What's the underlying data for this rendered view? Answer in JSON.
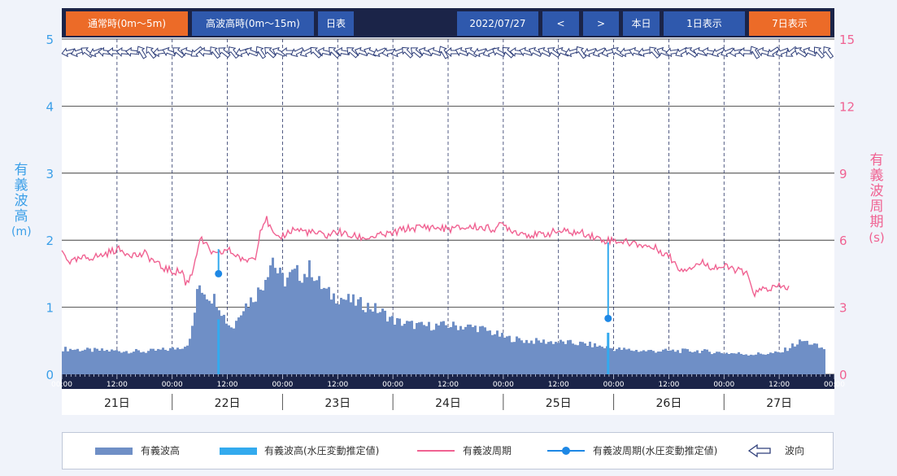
{
  "toolbar": {
    "normal_label": "通常時(0m〜5m)",
    "high_label": "高波高時(0m〜15m)",
    "daily_table_label": "日表",
    "date_value": "2022/07/27",
    "prev_label": "<",
    "next_label": ">",
    "today_label": "本日",
    "one_day_label": "1日表示",
    "seven_day_label": "7日表示"
  },
  "axes": {
    "left_label": [
      "有",
      "義",
      "波",
      "高",
      "(m)"
    ],
    "right_label": [
      "有",
      "義",
      "波",
      "周",
      "期",
      "(s)"
    ],
    "left_ticks": [
      "5",
      "4",
      "3",
      "2",
      "1",
      "0"
    ],
    "right_ticks": [
      "15",
      "12",
      "9",
      "6",
      "3",
      "0"
    ],
    "time_labels": [
      "00:00",
      "12:00",
      "00:00",
      "12:00",
      "00:00",
      "12:00",
      "00:00",
      "12:00",
      "00:00",
      "12:00",
      "00:00",
      "12:00",
      "00:00",
      "12:00",
      "00:00"
    ],
    "day_labels": [
      "21日",
      "22日",
      "23日",
      "24日",
      "25日",
      "26日",
      "27日"
    ]
  },
  "legend": {
    "wave_height": "有義波高",
    "wave_height_pressure": "有義波高(水圧変動推定値)",
    "wave_period": "有義波周期",
    "wave_period_pressure": "有義波周期(水圧変動推定値)",
    "wave_direction": "波向"
  },
  "colors": {
    "height_bar": "#6f8fc6",
    "height_pressure": "#33aaee",
    "period_line": "#f06292",
    "left_axis": "#3b9fe8",
    "right_axis": "#f06292",
    "orange_button": "#ec6b28",
    "blue_button": "#2f59ad",
    "toolbar_bg": "#1b2448"
  },
  "chart_data": {
    "type": "bar+line",
    "x_unit": "days since 2022-07-21 00:00",
    "x_range": [
      0,
      7
    ],
    "y_left_range": [
      0,
      5
    ],
    "y_right_range": [
      0,
      15
    ],
    "y_left_label": "有義波高(m)",
    "y_right_label": "有義波周期(s)",
    "series": [
      {
        "name": "有義波高",
        "kind": "bar",
        "axis": "left",
        "points": [
          [
            0,
            0.38
          ],
          [
            0.25,
            0.36
          ],
          [
            0.5,
            0.35
          ],
          [
            0.75,
            0.34
          ],
          [
            1.0,
            0.38
          ],
          [
            1.1,
            0.42
          ],
          [
            1.15,
            0.5
          ],
          [
            1.2,
            1.0
          ],
          [
            1.23,
            1.35
          ],
          [
            1.3,
            1.2
          ],
          [
            1.4,
            1.1
          ],
          [
            1.45,
            0.9
          ],
          [
            1.48,
            0.8
          ],
          [
            1.5,
            0.75
          ],
          [
            1.55,
            0.7
          ],
          [
            1.6,
            0.95
          ],
          [
            1.7,
            1.1
          ],
          [
            1.75,
            1.2
          ],
          [
            1.8,
            1.3
          ],
          [
            1.85,
            1.55
          ],
          [
            1.9,
            1.75
          ],
          [
            1.95,
            1.5
          ],
          [
            2.0,
            1.4
          ],
          [
            2.1,
            1.5
          ],
          [
            2.2,
            1.5
          ],
          [
            2.25,
            1.6
          ],
          [
            2.3,
            1.4
          ],
          [
            2.4,
            1.2
          ],
          [
            2.5,
            1.15
          ],
          [
            2.6,
            1.1
          ],
          [
            2.7,
            1.05
          ],
          [
            2.8,
            1.0
          ],
          [
            2.9,
            0.92
          ],
          [
            3.0,
            0.8
          ],
          [
            3.1,
            0.76
          ],
          [
            3.25,
            0.72
          ],
          [
            3.5,
            0.73
          ],
          [
            3.75,
            0.7
          ],
          [
            3.9,
            0.62
          ],
          [
            4.0,
            0.55
          ],
          [
            4.2,
            0.5
          ],
          [
            4.5,
            0.48
          ],
          [
            4.75,
            0.45
          ],
          [
            5.0,
            0.38
          ],
          [
            5.25,
            0.35
          ],
          [
            5.5,
            0.35
          ],
          [
            5.75,
            0.35
          ],
          [
            6.0,
            0.32
          ],
          [
            6.25,
            0.3
          ],
          [
            6.5,
            0.32
          ],
          [
            6.6,
            0.42
          ],
          [
            6.7,
            0.5
          ],
          [
            6.8,
            0.45
          ],
          [
            6.85,
            0.4
          ],
          [
            6.9,
            0.38
          ]
        ]
      },
      {
        "name": "有義波高(水圧変動推定値)",
        "kind": "spike",
        "axis": "left",
        "points": [
          [
            1.42,
            0.82
          ],
          [
            4.95,
            0.62
          ]
        ]
      },
      {
        "name": "有義波周期",
        "kind": "line",
        "axis": "right",
        "points": [
          [
            0,
            5.5
          ],
          [
            0.08,
            5.0
          ],
          [
            0.2,
            5.2
          ],
          [
            0.35,
            5.3
          ],
          [
            0.45,
            5.5
          ],
          [
            0.5,
            5.6
          ],
          [
            0.55,
            5.5
          ],
          [
            0.7,
            5.3
          ],
          [
            0.75,
            5.4
          ],
          [
            0.8,
            5.2
          ],
          [
            0.9,
            4.8
          ],
          [
            1.0,
            4.6
          ],
          [
            1.1,
            4.6
          ],
          [
            1.12,
            4.0
          ],
          [
            1.18,
            4.5
          ],
          [
            1.25,
            6.1
          ],
          [
            1.3,
            5.8
          ],
          [
            1.35,
            5.5
          ],
          [
            1.4,
            5.3
          ],
          [
            1.5,
            5.6
          ],
          [
            1.55,
            5.4
          ],
          [
            1.6,
            5.3
          ],
          [
            1.65,
            5.0
          ],
          [
            1.7,
            5.2
          ],
          [
            1.75,
            5.2
          ],
          [
            1.8,
            6.5
          ],
          [
            1.85,
            7.0
          ],
          [
            1.9,
            6.4
          ],
          [
            1.95,
            6.0
          ],
          [
            2.0,
            6.2
          ],
          [
            2.1,
            6.5
          ],
          [
            2.2,
            6.4
          ],
          [
            2.3,
            6.3
          ],
          [
            2.4,
            6.2
          ],
          [
            2.5,
            6.4
          ],
          [
            2.6,
            6.2
          ],
          [
            2.75,
            6.1
          ],
          [
            3.0,
            6.3
          ],
          [
            3.1,
            6.5
          ],
          [
            3.3,
            6.6
          ],
          [
            3.5,
            6.5
          ],
          [
            3.75,
            6.6
          ],
          [
            3.9,
            6.5
          ],
          [
            4.0,
            6.7
          ],
          [
            4.1,
            6.4
          ],
          [
            4.2,
            6.3
          ],
          [
            4.3,
            6.2
          ],
          [
            4.5,
            6.4
          ],
          [
            4.75,
            6.3
          ],
          [
            4.9,
            6.0
          ],
          [
            5.0,
            6.0
          ],
          [
            5.25,
            5.8
          ],
          [
            5.4,
            5.6
          ],
          [
            5.5,
            5.3
          ],
          [
            5.6,
            4.7
          ],
          [
            5.7,
            4.8
          ],
          [
            5.8,
            5.0
          ],
          [
            5.9,
            4.8
          ],
          [
            6.0,
            4.8
          ],
          [
            6.1,
            4.7
          ],
          [
            6.2,
            4.5
          ],
          [
            6.28,
            3.6
          ],
          [
            6.35,
            3.8
          ],
          [
            6.5,
            3.9
          ],
          [
            6.6,
            3.9
          ]
        ]
      },
      {
        "name": "有義波周期(水圧変動推定値)",
        "kind": "marker-line",
        "axis": "right",
        "points": [
          [
            1.42,
            4.5
          ],
          [
            1.42,
            5.6
          ],
          [
            4.95,
            5.9
          ],
          [
            4.95,
            2.5
          ]
        ]
      }
    ]
  }
}
